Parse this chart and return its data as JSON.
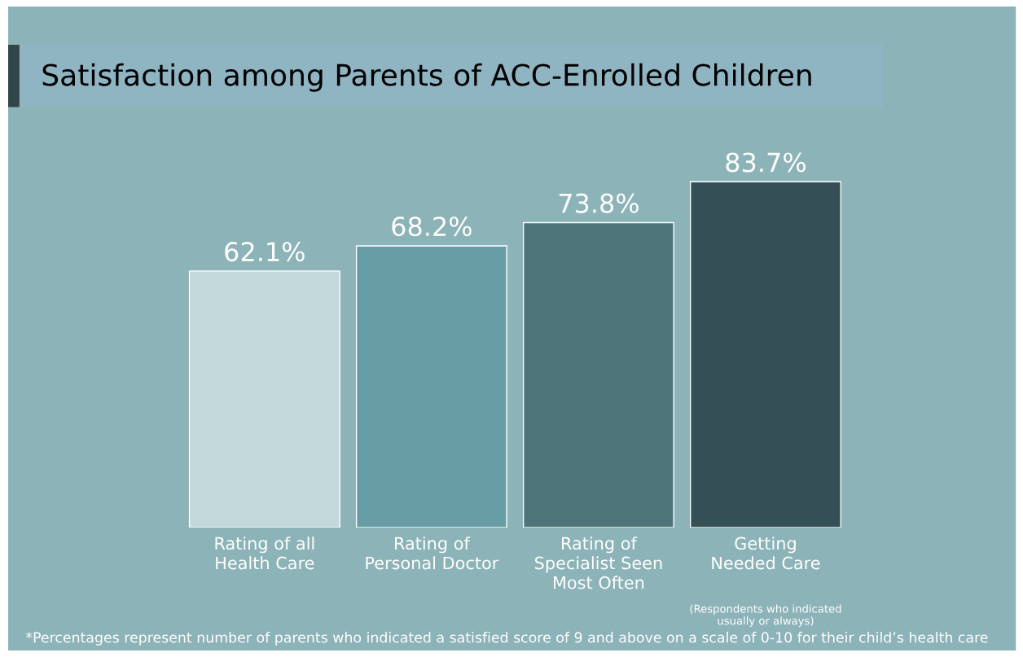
{
  "chart_data": {
    "type": "bar",
    "title": "Satisfaction among Parents of ACC-Enrolled Children",
    "categories": [
      "Rating of all\nHealth Care",
      "Rating of\nPersonal Doctor",
      "Rating of\nSpecialist Seen\nMost Often",
      "Getting\nNeeded Care"
    ],
    "values": [
      62.1,
      68.2,
      73.8,
      83.7
    ],
    "colors": [
      "#c3d8db",
      "#679ea6",
      "#4d7479",
      "#344f55"
    ],
    "value_labels": [
      "62.1%",
      "68.2%",
      "73.8%",
      "83.7%"
    ],
    "annotations": [
      "(Respondents who indicated\nusually or always)",
      "*Percentages represent number of parents who indicated a satisfied score of 9 and above on a scale of 0-10 for their child’s health care"
    ],
    "grid": false,
    "legend": false
  }
}
